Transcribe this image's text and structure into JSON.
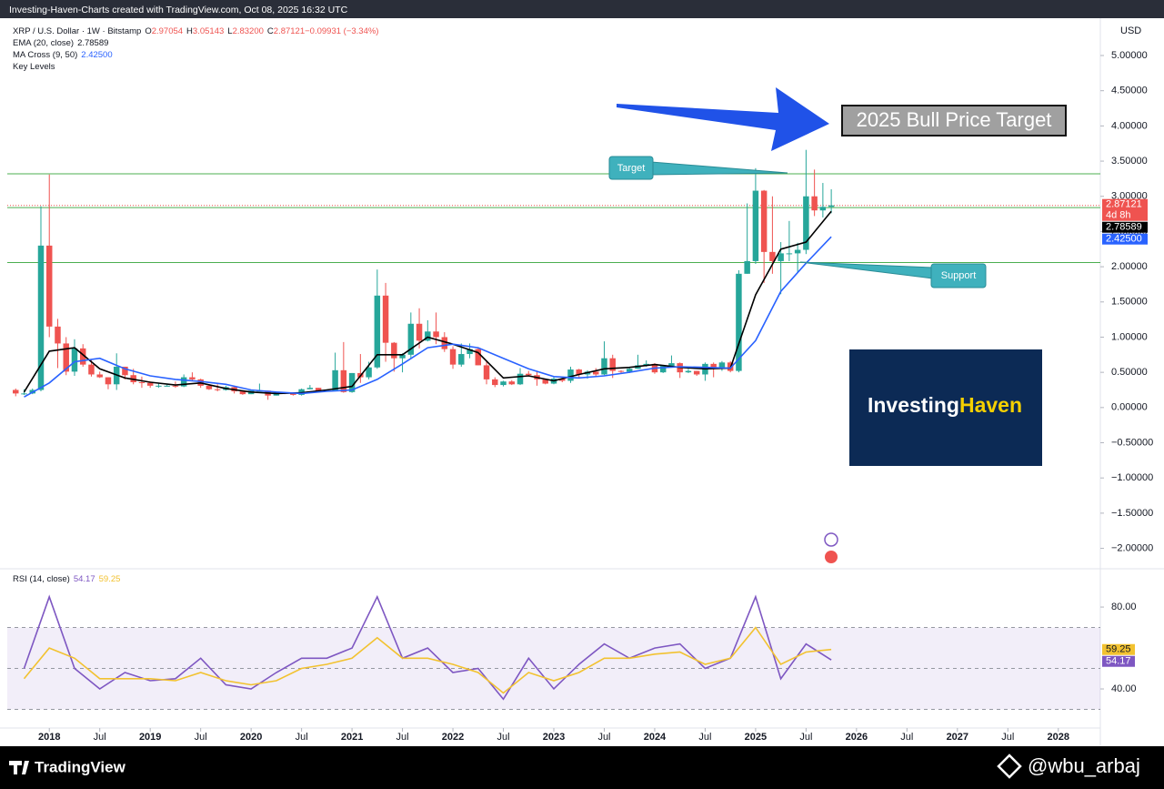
{
  "header": "Investing-Haven-Charts created with TradingView.com, Oct 08, 2025 16:32 UTC",
  "chart_data": [
    {
      "type": "candlestick",
      "currency": "USD",
      "symbol": "XRP / U.S. Dollar · 1W · Bitstamp",
      "ohlc_legend": [
        {
          "label": "O",
          "value": "2.97054"
        },
        {
          "label": "H",
          "value": "3.05143"
        },
        {
          "label": "L",
          "value": "2.83200"
        },
        {
          "label": "C",
          "value": "2.87121"
        },
        {
          "label": "",
          "value": "−0.09931 (−3.34%)"
        }
      ],
      "up_color": "#26a69a",
      "down_color": "#ef5350",
      "x": [
        "2017-09",
        "2017-10",
        "2017-11",
        "2017-12",
        "2018-01",
        "2018-02",
        "2018-03",
        "2018-04",
        "2018-05",
        "2018-06",
        "2018-07",
        "2018-08",
        "2018-09",
        "2018-10",
        "2018-11",
        "2018-12",
        "2019-01",
        "2019-02",
        "2019-03",
        "2019-04",
        "2019-05",
        "2019-06",
        "2019-07",
        "2019-08",
        "2019-09",
        "2019-10",
        "2019-11",
        "2019-12",
        "2020-01",
        "2020-02",
        "2020-03",
        "2020-04",
        "2020-05",
        "2020-06",
        "2020-07",
        "2020-08",
        "2020-09",
        "2020-10",
        "2020-11",
        "2020-12",
        "2021-01",
        "2021-02",
        "2021-03",
        "2021-04",
        "2021-05",
        "2021-06",
        "2021-07",
        "2021-08",
        "2021-09",
        "2021-10",
        "2021-11",
        "2021-12",
        "2022-01",
        "2022-02",
        "2022-03",
        "2022-04",
        "2022-05",
        "2022-06",
        "2022-07",
        "2022-08",
        "2022-09",
        "2022-10",
        "2022-11",
        "2022-12",
        "2023-01",
        "2023-02",
        "2023-03",
        "2023-04",
        "2023-05",
        "2023-06",
        "2023-07",
        "2023-08",
        "2023-09",
        "2023-10",
        "2023-11",
        "2023-12",
        "2024-01",
        "2024-02",
        "2024-03",
        "2024-04",
        "2024-05",
        "2024-06",
        "2024-07",
        "2024-08",
        "2024-09",
        "2024-10",
        "2024-11",
        "2024-12",
        "2025-01",
        "2025-02",
        "2025-03",
        "2025-04",
        "2025-05",
        "2025-06",
        "2025-07",
        "2025-08",
        "2025-09",
        "2025-10"
      ],
      "open": [
        0.25,
        0.2,
        0.2,
        0.25,
        2.3,
        1.15,
        0.91,
        0.51,
        0.84,
        0.61,
        0.47,
        0.43,
        0.33,
        0.58,
        0.46,
        0.36,
        0.35,
        0.31,
        0.31,
        0.31,
        0.3,
        0.43,
        0.4,
        0.31,
        0.26,
        0.25,
        0.29,
        0.23,
        0.19,
        0.24,
        0.24,
        0.17,
        0.21,
        0.2,
        0.18,
        0.26,
        0.28,
        0.24,
        0.24,
        0.53,
        0.22,
        0.49,
        0.43,
        0.57,
        1.59,
        0.92,
        0.7,
        0.75,
        1.19,
        0.95,
        1.08,
        1.0,
        0.83,
        0.61,
        0.76,
        0.83,
        0.6,
        0.4,
        0.32,
        0.37,
        0.33,
        0.48,
        0.46,
        0.4,
        0.34,
        0.41,
        0.38,
        0.54,
        0.47,
        0.51,
        0.47,
        0.7,
        0.52,
        0.51,
        0.55,
        0.6,
        0.62,
        0.5,
        0.59,
        0.63,
        0.5,
        0.52,
        0.47,
        0.62,
        0.57,
        0.64,
        0.52,
        1.9,
        2.08,
        3.08,
        2.21,
        2.08,
        2.19,
        2.19,
        2.24,
        3.0,
        2.8,
        2.85
      ],
      "high": [
        0.27,
        0.26,
        0.27,
        2.86,
        3.31,
        1.26,
        1.0,
        0.97,
        0.9,
        0.69,
        0.51,
        0.43,
        0.77,
        0.58,
        0.55,
        0.44,
        0.37,
        0.34,
        0.33,
        0.37,
        0.47,
        0.5,
        0.41,
        0.33,
        0.33,
        0.31,
        0.31,
        0.23,
        0.25,
        0.34,
        0.24,
        0.23,
        0.22,
        0.21,
        0.27,
        0.32,
        0.28,
        0.26,
        0.78,
        0.93,
        0.49,
        0.76,
        0.65,
        1.96,
        1.77,
        0.93,
        0.77,
        1.35,
        1.41,
        1.24,
        1.35,
        1.07,
        0.87,
        0.91,
        0.91,
        0.85,
        0.66,
        0.43,
        0.38,
        0.39,
        0.56,
        0.52,
        0.52,
        0.41,
        0.43,
        0.42,
        0.58,
        0.55,
        0.53,
        0.56,
        0.94,
        0.75,
        0.53,
        0.58,
        0.75,
        0.67,
        0.63,
        0.6,
        0.74,
        0.64,
        0.55,
        0.52,
        0.64,
        0.64,
        0.66,
        0.66,
        1.95,
        2.9,
        3.4,
        3.09,
        3.0,
        2.35,
        2.65,
        2.34,
        3.66,
        3.38,
        3.19,
        3.1
      ],
      "low": [
        0.16,
        0.18,
        0.19,
        0.23,
        1.0,
        0.56,
        0.46,
        0.45,
        0.58,
        0.44,
        0.42,
        0.26,
        0.25,
        0.4,
        0.33,
        0.28,
        0.28,
        0.28,
        0.3,
        0.28,
        0.29,
        0.38,
        0.28,
        0.25,
        0.23,
        0.24,
        0.2,
        0.18,
        0.19,
        0.23,
        0.11,
        0.17,
        0.19,
        0.17,
        0.17,
        0.26,
        0.22,
        0.23,
        0.23,
        0.21,
        0.21,
        0.35,
        0.4,
        0.55,
        0.65,
        0.51,
        0.5,
        0.7,
        0.84,
        0.94,
        0.9,
        0.79,
        0.55,
        0.58,
        0.7,
        0.6,
        0.33,
        0.29,
        0.3,
        0.32,
        0.32,
        0.44,
        0.31,
        0.33,
        0.33,
        0.36,
        0.35,
        0.43,
        0.41,
        0.45,
        0.46,
        0.42,
        0.48,
        0.49,
        0.55,
        0.58,
        0.48,
        0.49,
        0.57,
        0.42,
        0.49,
        0.45,
        0.38,
        0.43,
        0.52,
        0.5,
        0.5,
        1.9,
        2.04,
        1.77,
        1.9,
        1.61,
        2.08,
        1.91,
        2.18,
        2.72,
        2.7,
        2.76
      ],
      "close": [
        0.2,
        0.2,
        0.25,
        2.3,
        1.15,
        0.91,
        0.51,
        0.84,
        0.61,
        0.47,
        0.43,
        0.33,
        0.58,
        0.46,
        0.36,
        0.35,
        0.31,
        0.31,
        0.31,
        0.3,
        0.43,
        0.4,
        0.31,
        0.26,
        0.25,
        0.29,
        0.23,
        0.19,
        0.24,
        0.24,
        0.17,
        0.21,
        0.2,
        0.18,
        0.26,
        0.28,
        0.24,
        0.24,
        0.53,
        0.22,
        0.49,
        0.43,
        0.57,
        1.59,
        0.92,
        0.7,
        0.75,
        1.19,
        0.95,
        1.08,
        1.0,
        0.83,
        0.61,
        0.76,
        0.83,
        0.6,
        0.4,
        0.32,
        0.37,
        0.33,
        0.48,
        0.46,
        0.4,
        0.34,
        0.41,
        0.38,
        0.54,
        0.47,
        0.51,
        0.47,
        0.7,
        0.52,
        0.51,
        0.55,
        0.6,
        0.62,
        0.5,
        0.59,
        0.63,
        0.5,
        0.52,
        0.47,
        0.62,
        0.57,
        0.64,
        0.52,
        1.9,
        2.08,
        3.08,
        2.21,
        2.08,
        2.19,
        2.19,
        2.24,
        3.0,
        2.8,
        2.85,
        2.87121
      ],
      "series": [
        {
          "name": "EMA (20, close)",
          "color": "#000000",
          "x": [
            "2017-10",
            "2018-01",
            "2018-04",
            "2018-07",
            "2018-10",
            "2019-01",
            "2019-04",
            "2019-07",
            "2019-10",
            "2020-01",
            "2020-04",
            "2020-07",
            "2020-10",
            "2021-01",
            "2021-04",
            "2021-07",
            "2021-10",
            "2022-01",
            "2022-04",
            "2022-07",
            "2022-10",
            "2023-01",
            "2023-04",
            "2023-07",
            "2023-10",
            "2024-01",
            "2024-04",
            "2024-07",
            "2024-10",
            "2025-01",
            "2025-04",
            "2025-07",
            "2025-10"
          ],
          "values": [
            0.22,
            0.8,
            0.85,
            0.55,
            0.42,
            0.36,
            0.32,
            0.35,
            0.27,
            0.22,
            0.2,
            0.21,
            0.25,
            0.3,
            0.75,
            0.75,
            1.0,
            0.9,
            0.78,
            0.42,
            0.45,
            0.38,
            0.47,
            0.55,
            0.57,
            0.61,
            0.57,
            0.55,
            0.56,
            1.6,
            2.25,
            2.35,
            2.78589
          ]
        },
        {
          "name": "MA Cross (9, 50)",
          "color": "#2962ff",
          "legend_value": "2.42500",
          "x": [
            "2017-10",
            "2018-01",
            "2018-04",
            "2018-07",
            "2018-10",
            "2019-01",
            "2019-04",
            "2019-07",
            "2019-10",
            "2020-01",
            "2020-04",
            "2020-07",
            "2020-10",
            "2021-01",
            "2021-04",
            "2021-07",
            "2021-10",
            "2022-01",
            "2022-04",
            "2022-07",
            "2022-10",
            "2023-01",
            "2023-04",
            "2023-07",
            "2023-10",
            "2024-01",
            "2024-04",
            "2024-07",
            "2024-10",
            "2025-01",
            "2025-04",
            "2025-07",
            "2025-10"
          ],
          "values": [
            0.15,
            0.35,
            0.65,
            0.7,
            0.55,
            0.45,
            0.4,
            0.37,
            0.33,
            0.25,
            0.22,
            0.2,
            0.23,
            0.25,
            0.4,
            0.62,
            0.85,
            0.9,
            0.85,
            0.7,
            0.55,
            0.44,
            0.42,
            0.45,
            0.5,
            0.56,
            0.58,
            0.57,
            0.56,
            0.95,
            1.65,
            2.05,
            2.425
          ]
        }
      ],
      "levels": {
        "name": "Key Levels",
        "color": "#4caf50",
        "values": [
          3.32,
          2.84,
          2.06
        ]
      },
      "last_price": {
        "value": 2.87121,
        "countdown": "4d 8h"
      },
      "xlim": [
        "2017-08",
        "2028-06"
      ],
      "xticks": [
        {
          "value": "2018-01",
          "label": "2018"
        },
        {
          "value": "2018-07",
          "label": "Jul"
        },
        {
          "value": "2019-01",
          "label": "2019"
        },
        {
          "value": "2019-07",
          "label": "Jul"
        },
        {
          "value": "2020-01",
          "label": "2020"
        },
        {
          "value": "2020-07",
          "label": "Jul"
        },
        {
          "value": "2021-01",
          "label": "2021"
        },
        {
          "value": "2021-07",
          "label": "Jul"
        },
        {
          "value": "2022-01",
          "label": "2022"
        },
        {
          "value": "2022-07",
          "label": "Jul"
        },
        {
          "value": "2023-01",
          "label": "2023"
        },
        {
          "value": "2023-07",
          "label": "Jul"
        },
        {
          "value": "2024-01",
          "label": "2024"
        },
        {
          "value": "2024-07",
          "label": "Jul"
        },
        {
          "value": "2025-01",
          "label": "2025"
        },
        {
          "value": "2025-07",
          "label": "Jul"
        },
        {
          "value": "2026-01",
          "label": "2026"
        },
        {
          "value": "2026-07",
          "label": "Jul"
        },
        {
          "value": "2027-01",
          "label": "2027"
        },
        {
          "value": "2027-07",
          "label": "Jul"
        },
        {
          "value": "2028-01",
          "label": "2028"
        }
      ],
      "ylim": [
        -2.29,
        5.53
      ],
      "yticks": [
        {
          "value": -2,
          "label": "−2.00000"
        },
        {
          "value": -1.5,
          "label": "−1.50000"
        },
        {
          "value": -1,
          "label": "−1.00000"
        },
        {
          "value": -0.5,
          "label": "−0.50000"
        },
        {
          "value": 0,
          "label": "0.00000"
        },
        {
          "value": 0.5,
          "label": "0.50000"
        },
        {
          "value": 1,
          "label": "1.00000"
        },
        {
          "value": 1.5,
          "label": "1.50000"
        },
        {
          "value": 2,
          "label": "2.00000"
        },
        {
          "value": 2.5,
          "label": "2.50000"
        },
        {
          "value": 3,
          "label": "3.00000"
        },
        {
          "value": 3.5,
          "label": "3.50000"
        },
        {
          "value": 4,
          "label": "4.00000"
        },
        {
          "value": 4.5,
          "label": "4.50000"
        },
        {
          "value": 5,
          "label": "5.00000"
        }
      ],
      "grid": false,
      "annotations": {
        "banner": "2025 Bull Price Target",
        "target": "Target",
        "support": "Support",
        "logo_left": "Investing",
        "logo_right": "Haven"
      }
    },
    {
      "type": "line",
      "title": "RSI (14, close)",
      "series": [
        {
          "name": "RSI",
          "color": "#7e57c2",
          "x": [
            "2017-10",
            "2018-01",
            "2018-04",
            "2018-07",
            "2018-10",
            "2019-01",
            "2019-04",
            "2019-07",
            "2019-10",
            "2020-01",
            "2020-04",
            "2020-07",
            "2020-10",
            "2021-01",
            "2021-04",
            "2021-07",
            "2021-10",
            "2022-01",
            "2022-04",
            "2022-07",
            "2022-10",
            "2023-01",
            "2023-04",
            "2023-07",
            "2023-10",
            "2024-01",
            "2024-04",
            "2024-07",
            "2024-10",
            "2025-01",
            "2025-04",
            "2025-07",
            "2025-10"
          ],
          "values": [
            50,
            85,
            50,
            40,
            48,
            44,
            45,
            55,
            42,
            40,
            48,
            55,
            55,
            60,
            85,
            55,
            60,
            48,
            50,
            35,
            55,
            40,
            52,
            62,
            55,
            60,
            62,
            50,
            55,
            85,
            45,
            62,
            54.17
          ]
        },
        {
          "name": "RSI MA",
          "color": "#f2c230",
          "x": [
            "2017-10",
            "2018-01",
            "2018-04",
            "2018-07",
            "2018-10",
            "2019-01",
            "2019-04",
            "2019-07",
            "2019-10",
            "2020-01",
            "2020-04",
            "2020-07",
            "2020-10",
            "2021-01",
            "2021-04",
            "2021-07",
            "2021-10",
            "2022-01",
            "2022-04",
            "2022-07",
            "2022-10",
            "2023-01",
            "2023-04",
            "2023-07",
            "2023-10",
            "2024-01",
            "2024-04",
            "2024-07",
            "2024-10",
            "2025-01",
            "2025-04",
            "2025-07",
            "2025-10"
          ],
          "values": [
            45,
            60,
            55,
            45,
            45,
            45,
            44,
            48,
            44,
            42,
            44,
            50,
            52,
            55,
            65,
            55,
            55,
            52,
            48,
            38,
            48,
            44,
            48,
            55,
            55,
            57,
            58,
            52,
            55,
            70,
            52,
            58,
            59.25
          ]
        }
      ],
      "bands": [
        30,
        50,
        70
      ],
      "band_color": "#7e57c2",
      "ylim": [
        20.9,
        98.7
      ],
      "yticks": [
        {
          "value": 40,
          "label": "40.00"
        },
        {
          "value": 80,
          "label": "80.00"
        }
      ]
    }
  ],
  "footer": {
    "brand": "TradingView",
    "watermark": "@wbu_arbaj"
  }
}
